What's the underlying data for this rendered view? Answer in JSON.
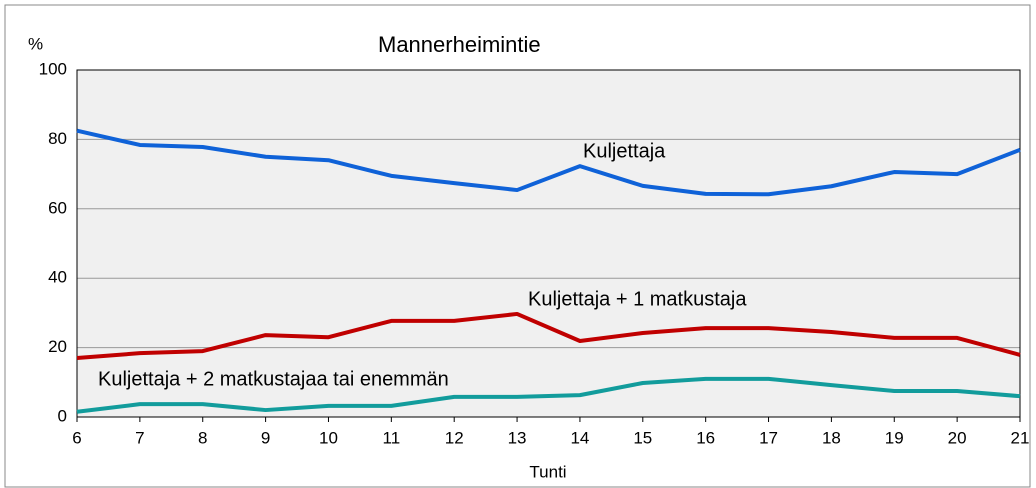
{
  "chart_data": {
    "type": "line",
    "title": "Mannerheimintie",
    "y_label": "%",
    "x_label": "Tunti",
    "x": [
      6,
      7,
      8,
      9,
      10,
      11,
      12,
      13,
      14,
      15,
      16,
      17,
      18,
      19,
      20,
      21
    ],
    "xlim": [
      6,
      21
    ],
    "xticks": [
      6,
      7,
      8,
      9,
      10,
      11,
      12,
      13,
      14,
      15,
      16,
      17,
      18,
      19,
      20,
      21
    ],
    "ylim": [
      0,
      100
    ],
    "yticks": [
      0,
      20,
      40,
      60,
      80,
      100
    ],
    "grid": true,
    "series": [
      {
        "name": "Kuljettaja",
        "color": "#0f62d8",
        "values": [
          82.5,
          78.4,
          77.8,
          75,
          74,
          69.5,
          67.4,
          65.4,
          72.3,
          66.6,
          64.3,
          64.2,
          66.5,
          70.6,
          70,
          77
        ]
      },
      {
        "name": "Kuljettaja + 1 matkustaja",
        "color": "#c00000",
        "values": [
          17,
          18.4,
          19,
          23.6,
          23,
          27.7,
          27.7,
          29.7,
          21.9,
          24.2,
          25.6,
          25.6,
          24.5,
          22.8,
          22.8,
          17.9
        ]
      },
      {
        "name": "Kuljettaja + 2 matkustajaa tai enemmän",
        "color": "#129c9c",
        "values": [
          1.5,
          3.7,
          3.7,
          2,
          3.2,
          3.2,
          5.8,
          5.8,
          6.3,
          9.8,
          11,
          11,
          9.2,
          7.5,
          7.5,
          6
        ]
      }
    ]
  }
}
